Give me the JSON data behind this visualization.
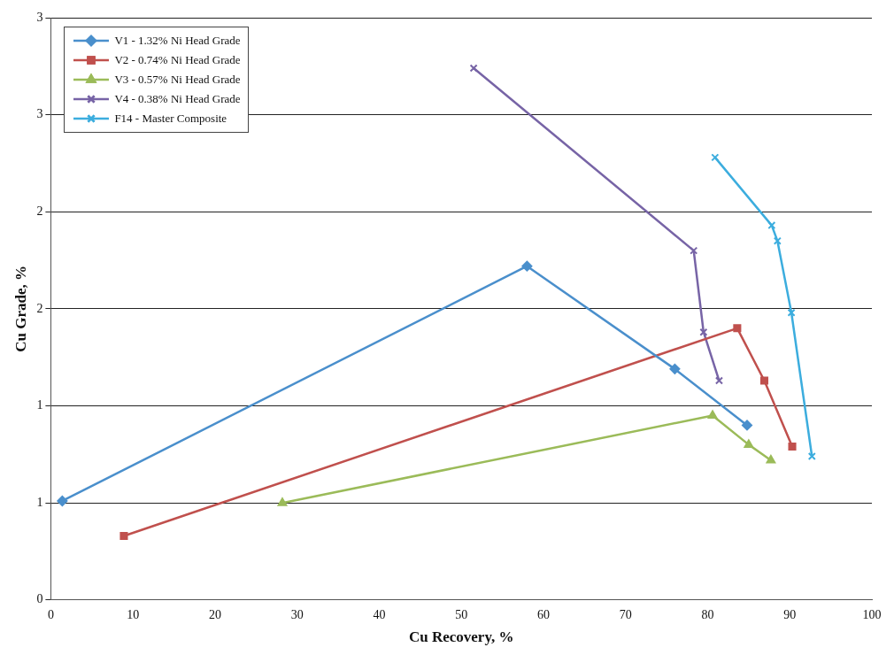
{
  "chart_data": {
    "type": "line",
    "xlabel": "Cu Recovery, %",
    "ylabel": "Cu Grade, %",
    "xlim": [
      0,
      100
    ],
    "xticks": [
      0,
      10,
      20,
      30,
      40,
      50,
      60,
      70,
      80,
      90,
      100
    ],
    "ylim": [
      0,
      3
    ],
    "yticks": [
      0,
      {
        "value": 0.5,
        "label": "1"
      },
      1,
      {
        "value": 1.5,
        "label": "2"
      },
      2,
      {
        "value": 2.5,
        "label": "3"
      },
      3
    ],
    "grid": "y",
    "legend": "top left",
    "series": [
      {
        "name": "V1 - 1.32% Ni Head Grade",
        "color": "#4a8fcc",
        "marker": "diamond",
        "x": [
          1.4,
          58,
          76,
          84.8
        ],
        "values": [
          0.51,
          1.72,
          1.19,
          0.9
        ]
      },
      {
        "name": "V2 - 0.74% Ni Head Grade",
        "color": "#c0504d",
        "marker": "square",
        "x": [
          8.9,
          83.6,
          86.9,
          90.3
        ],
        "values": [
          0.33,
          1.4,
          1.13,
          0.79
        ]
      },
      {
        "name": "V3 - 0.57% Ni Head Grade",
        "color": "#9bbb59",
        "marker": "triangle",
        "x": [
          28.2,
          80.6,
          85,
          87.7
        ],
        "values": [
          0.5,
          0.95,
          0.8,
          0.72
        ]
      },
      {
        "name": "V4 - 0.38% Ni Head Grade",
        "color": "#7764a6",
        "marker": "cross",
        "x": [
          51.5,
          78.3,
          79.5,
          81.4
        ],
        "values": [
          2.74,
          1.8,
          1.38,
          1.13
        ]
      },
      {
        "name": "F14 - Master Composite",
        "color": "#3cadde",
        "marker": "cross",
        "x": [
          80.9,
          87.8,
          88.5,
          90.2,
          92.7
        ],
        "values": [
          2.28,
          1.93,
          1.85,
          1.48,
          0.74
        ]
      }
    ]
  }
}
